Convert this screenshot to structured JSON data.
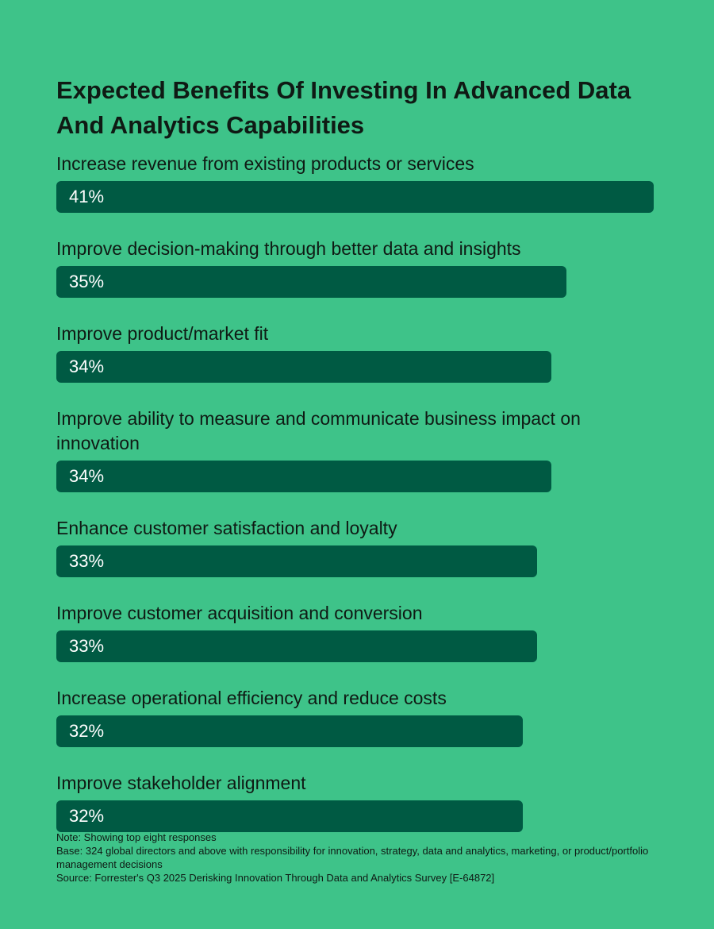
{
  "chart_data": {
    "type": "bar",
    "orientation": "horizontal",
    "title": "Expected Benefits Of Investing In Advanced Data And Analytics Capabilities",
    "categories": [
      "Increase revenue from existing products or services",
      "Improve decision-making through better data and insights",
      "Improve product/market fit",
      "Improve ability to measure and communicate business impact on innovation",
      "Enhance customer satisfaction and loyalty",
      "Improve customer acquisition and conversion",
      "Increase operational efficiency and reduce costs",
      "Improve stakeholder alignment"
    ],
    "values": [
      41,
      35,
      34,
      34,
      33,
      33,
      32,
      32
    ],
    "value_labels": [
      "41%",
      "35%",
      "34%",
      "34%",
      "33%",
      "33%",
      "32%",
      "32%"
    ],
    "unit": "%",
    "xlim": [
      0,
      41
    ],
    "grid": false,
    "legend": "none"
  },
  "colors": {
    "background": "#3ec389",
    "bar": "#005a43",
    "text": "#0f1a14",
    "bar_text": "#ffffff"
  },
  "notes": {
    "note": "Note: Showing top eight responses",
    "base": "Base: 324 global directors and above with responsibility for innovation, strategy, data and analytics, marketing, or product/portfolio management decisions",
    "source": "Source: Forrester's Q3 2025 Derisking Innovation Through Data and Analytics Survey [E-64872]"
  }
}
